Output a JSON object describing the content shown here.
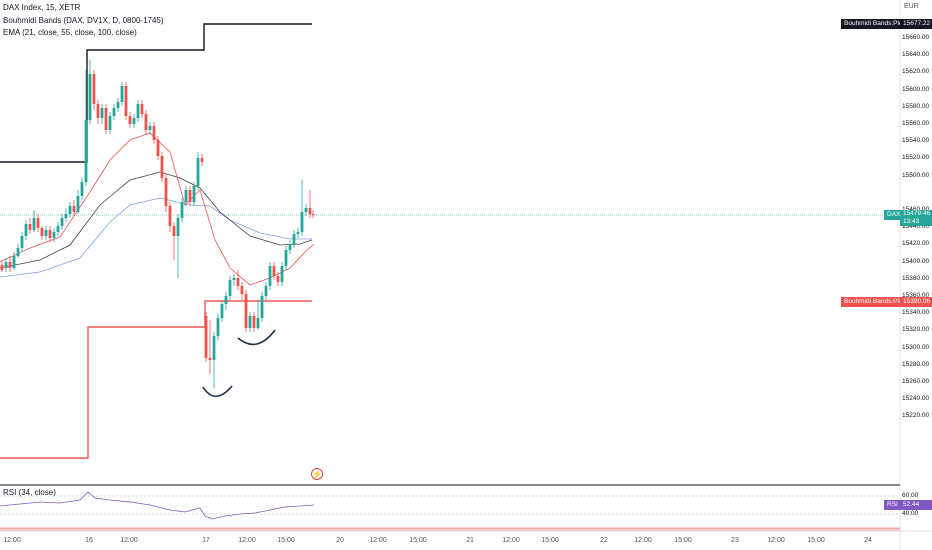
{
  "legend": {
    "symbol": "DAX Index, 15, XETR",
    "indicator_bands": "Bouhmidi Bands (DAX, DV1X, D, 0800-1745)",
    "indicator_ema": "EMA (21, close, 55, close, 100, close)",
    "rsi": "RSI (34, close)"
  },
  "axis": {
    "currency": "EUR",
    "price_ticks": [
      "15660.00",
      "15640.00",
      "15620.00",
      "15600.00",
      "15580.00",
      "15560.00",
      "15540.00",
      "15520.00",
      "15500.00",
      "15460.00",
      "15440.00",
      "15420.00",
      "15400.00",
      "15380.00",
      "15360.00",
      "15340.00",
      "15320.00",
      "15300.00",
      "15280.00",
      "15260.00",
      "15240.00",
      "15220.00"
    ],
    "rsi_ticks": [
      "60.00",
      "40.00"
    ],
    "time_ticks": [
      "12:00",
      "16",
      "12:00",
      "17",
      "12:00",
      "15:00",
      "20",
      "12:00",
      "15:00",
      "21",
      "12:00",
      "15:00",
      "22",
      "12:00",
      "15:00",
      "23",
      "12:00",
      "15:00",
      "24"
    ]
  },
  "badges": {
    "upper_name": "Bouhmidi Bands:Plot",
    "upper_value": "15677.22",
    "dax_name": "DAX",
    "dax_value": "15479.46",
    "dax_countdown": "13:43",
    "lower_name": "Bouhmidi Bands:Plot",
    "lower_value": "15390.06",
    "rsi_name": "RSI",
    "rsi_value": "52.44"
  },
  "colors": {
    "up": "#26a69a",
    "down": "#ef5350",
    "upper_band": "#131722",
    "lower_band": "#ef5350",
    "ema21": "#ef5350",
    "ema55": "#424242",
    "ema100": "#7ba3e0",
    "rsi": "#7e57c2"
  },
  "icons": {
    "event": "lightning-icon"
  }
}
